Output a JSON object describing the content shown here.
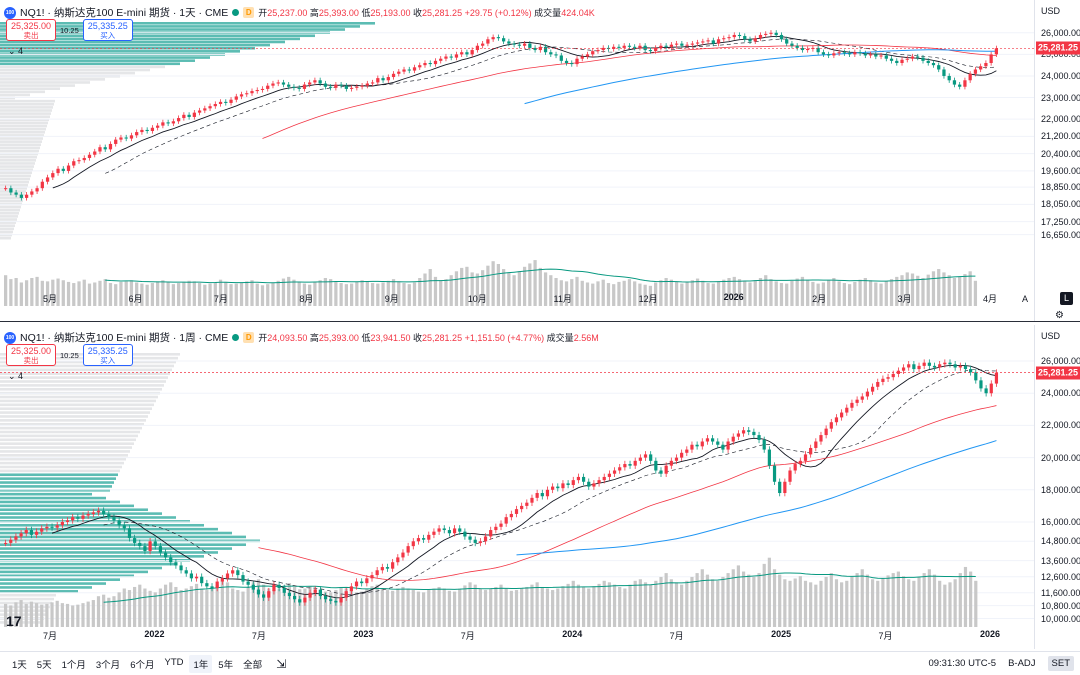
{
  "colors": {
    "up": "#f23645",
    "down": "#089981",
    "accent": "#2962ff",
    "ma_fast": "#131722",
    "ma_mid": "#f23645",
    "ma_slow": "#2196f3",
    "volume": "#c8c8c8",
    "profile_up": "#26a69a",
    "profile_gray": "#dcdde0"
  },
  "top": {
    "badge": "100",
    "title": "NQ1! · 纳斯达克100 E-mini 期货 · 1天 · CME",
    "d_mark": "D",
    "open_label": "开",
    "open": "25,237.00",
    "high_label": "高",
    "high": "25,393.00",
    "low_label": "低",
    "low": "25,193.00",
    "close_label": "收",
    "close": "25,281.25",
    "change": "+29.75 (+0.12%)",
    "vol_label": "成交量",
    "volume": "424.04K",
    "sell_price": "25,325.00",
    "sell_label": "卖出",
    "spread": "10.25",
    "buy_price": "25,335.25",
    "buy_label": "买入",
    "collapse": "4",
    "unit": "USD",
    "last_price": "25,281.25",
    "ticks": [
      "26,000.00",
      "25,000.00",
      "24,000.00",
      "23,000.00",
      "22,000.00",
      "21,200.00",
      "20,400.00",
      "19,600.00",
      "18,850.00",
      "18,050.00",
      "17,250.00",
      "16,650.00"
    ],
    "time_labels": [
      "5月",
      "6月",
      "7月",
      "8月",
      "9月",
      "10月",
      "11月",
      "12月",
      "2026",
      "2月",
      "3月",
      "4月"
    ],
    "chart_data": {
      "type": "candlestick",
      "ylim": [
        16400,
        26500
      ],
      "closes": [
        18800,
        18600,
        18500,
        18350,
        18500,
        18650,
        18800,
        19100,
        19300,
        19500,
        19700,
        19600,
        19850,
        20050,
        20100,
        20200,
        20350,
        20500,
        20700,
        20600,
        20850,
        21050,
        21150,
        21100,
        21250,
        21400,
        21500,
        21450,
        21600,
        21700,
        21850,
        21800,
        21900,
        22050,
        22200,
        22100,
        22300,
        22400,
        22500,
        22600,
        22700,
        22800,
        22750,
        22900,
        23050,
        23150,
        23200,
        23300,
        23350,
        23400,
        23550,
        23650,
        23700,
        23600,
        23500,
        23450,
        23400,
        23600,
        23700,
        23800,
        23650,
        23500,
        23450,
        23600,
        23550,
        23400,
        23450,
        23500,
        23550,
        23650,
        23700,
        23900,
        23800,
        23950,
        24100,
        24200,
        24300,
        24250,
        24400,
        24500,
        24600,
        24550,
        24700,
        24800,
        24900,
        24850,
        25000,
        25100,
        25000,
        25200,
        25400,
        25500,
        25700,
        25800,
        25750,
        25600,
        25500,
        25450,
        25400,
        25500,
        25300,
        25200,
        25350,
        25100,
        25000,
        24950,
        24700,
        24600,
        24550,
        24800,
        24900,
        25000,
        25150,
        25200,
        25300,
        25250,
        25350,
        25300,
        25400,
        25350,
        25300,
        25400,
        25200,
        25150,
        25300,
        25400,
        25350,
        25450,
        25500,
        25400,
        25450,
        25500,
        25550,
        25600,
        25650,
        25500,
        25700,
        25750,
        25800,
        25900,
        25850,
        25700,
        25600,
        25750,
        25900,
        25950,
        26000,
        25900,
        25700,
        25500,
        25400,
        25300,
        25200,
        25250,
        25300,
        25100,
        25000,
        24950,
        25050,
        25100,
        25050,
        25000,
        25100,
        25050,
        24950,
        25000,
        24900,
        24950,
        24800,
        24700,
        24600,
        24750,
        24800,
        24900,
        24850,
        24700,
        24600,
        24500,
        24300,
        24000,
        23800,
        23600,
        23500,
        23800,
        24100,
        24300,
        24450,
        24600,
        25000,
        25281.25
      ],
      "volumes": [
        0.55,
        0.48,
        0.5,
        0.42,
        0.46,
        0.5,
        0.52,
        0.45,
        0.44,
        0.47,
        0.49,
        0.46,
        0.43,
        0.41,
        0.44,
        0.47,
        0.4,
        0.42,
        0.45,
        0.48,
        0.41,
        0.39,
        0.43,
        0.44,
        0.46,
        0.42,
        0.4,
        0.38,
        0.41,
        0.44,
        0.46,
        0.42,
        0.39,
        0.41,
        0.43,
        0.45,
        0.44,
        0.41,
        0.38,
        0.4,
        0.42,
        0.47,
        0.43,
        0.39,
        0.4,
        0.42,
        0.44,
        0.46,
        0.4,
        0.37,
        0.39,
        0.41,
        0.45,
        0.49,
        0.52,
        0.47,
        0.43,
        0.4,
        0.38,
        0.42,
        0.46,
        0.5,
        0.48,
        0.44,
        0.41,
        0.39,
        0.4,
        0.43,
        0.46,
        0.44,
        0.41,
        0.4,
        0.42,
        0.45,
        0.48,
        0.44,
        0.41,
        0.39,
        0.42,
        0.5,
        0.58,
        0.66,
        0.52,
        0.46,
        0.48,
        0.55,
        0.62,
        0.68,
        0.7,
        0.6,
        0.58,
        0.64,
        0.72,
        0.8,
        0.75,
        0.66,
        0.6,
        0.55,
        0.62,
        0.7,
        0.76,
        0.82,
        0.68,
        0.6,
        0.55,
        0.5,
        0.46,
        0.44,
        0.48,
        0.52,
        0.45,
        0.42,
        0.4,
        0.44,
        0.47,
        0.41,
        0.39,
        0.43,
        0.45,
        0.48,
        0.44,
        0.4,
        0.38,
        0.36,
        0.42,
        0.46,
        0.5,
        0.47,
        0.43,
        0.4,
        0.42,
        0.46,
        0.49,
        0.45,
        0.41,
        0.4,
        0.44,
        0.47,
        0.5,
        0.52,
        0.48,
        0.45,
        0.42,
        0.46,
        0.5,
        0.55,
        0.48,
        0.44,
        0.41,
        0.4,
        0.45,
        0.49,
        0.52,
        0.47,
        0.43,
        0.4,
        0.42,
        0.46,
        0.5,
        0.44,
        0.41,
        0.39,
        0.43,
        0.47,
        0.5,
        0.46,
        0.42,
        0.4,
        0.44,
        0.48,
        0.52,
        0.55,
        0.6,
        0.58,
        0.54,
        0.5,
        0.56,
        0.62,
        0.66,
        0.6,
        0.55,
        0.5,
        0.52,
        0.57,
        0.62,
        0.45
      ]
    }
  },
  "bottom": {
    "badge": "100",
    "title": "NQ1! · 纳斯达克100 E-mini 期货 · 1周 · CME",
    "d_mark": "D",
    "open_label": "开",
    "open": "24,093.50",
    "high_label": "高",
    "high": "25,393.00",
    "low_label": "低",
    "low": "23,941.50",
    "close_label": "收",
    "close": "25,281.25",
    "change": "+1,151.50 (+4.77%)",
    "vol_label": "成交量",
    "volume": "2.56M",
    "sell_price": "25,325.00",
    "sell_label": "卖出",
    "spread": "10.25",
    "buy_price": "25,335.25",
    "buy_label": "买入",
    "collapse": "4",
    "unit": "USD",
    "last_price": "25,281.25",
    "ticks": [
      "26,000.00",
      "24,000.00",
      "22,000.00",
      "20,000.00",
      "18,000.00",
      "16,000.00",
      "14,800.00",
      "13,600.00",
      "12,600.00",
      "11,600.00",
      "10,800.00",
      "10,000.00"
    ],
    "time_labels": [
      "7月",
      "2022",
      "7月",
      "2023",
      "7月",
      "2024",
      "7月",
      "2025",
      "7月",
      "2026"
    ],
    "chart_data": {
      "type": "candlestick",
      "ylim": [
        9600,
        26500
      ],
      "closes": [
        14700,
        14900,
        15100,
        15300,
        15500,
        15200,
        15400,
        15600,
        15700,
        15650,
        15800,
        16000,
        16100,
        16300,
        16200,
        16400,
        16500,
        16600,
        16700,
        16500,
        16300,
        16100,
        15800,
        15600,
        15000,
        14700,
        14500,
        14200,
        14800,
        14500,
        14100,
        13800,
        13500,
        13300,
        13000,
        12800,
        12500,
        12600,
        12200,
        12000,
        11900,
        12300,
        12500,
        12800,
        13000,
        12700,
        12300,
        12100,
        11800,
        11500,
        11300,
        11700,
        12100,
        11900,
        11600,
        11400,
        11200,
        11000,
        11300,
        11600,
        11800,
        11400,
        11200,
        11100,
        11000,
        11300,
        11700,
        12000,
        12300,
        12200,
        12500,
        12700,
        13000,
        13200,
        13100,
        13500,
        13800,
        14100,
        14500,
        14800,
        15000,
        14900,
        15200,
        15400,
        15600,
        15500,
        15300,
        15600,
        15400,
        15100,
        14900,
        14700,
        14800,
        15100,
        15500,
        15700,
        15900,
        16300,
        16500,
        16800,
        17000,
        17200,
        17500,
        17800,
        17600,
        18000,
        18200,
        18100,
        18400,
        18300,
        18600,
        18800,
        18500,
        18200,
        18400,
        18600,
        18800,
        19000,
        19200,
        19400,
        19600,
        19500,
        19800,
        20000,
        20200,
        19800,
        19200,
        19000,
        19500,
        19800,
        20000,
        20300,
        20500,
        20800,
        20700,
        21000,
        21200,
        21000,
        20800,
        20500,
        21000,
        21300,
        21500,
        21700,
        21600,
        21400,
        21100,
        20500,
        19500,
        18500,
        17800,
        18500,
        19200,
        19600,
        19800,
        20200,
        20600,
        21000,
        21400,
        21800,
        22200,
        22500,
        22800,
        23100,
        23400,
        23600,
        23800,
        24100,
        24400,
        24700,
        24900,
        25000,
        25200,
        25400,
        25600,
        25800,
        25500,
        25700,
        25900,
        25700,
        25600,
        25800,
        25900,
        25800,
        25600,
        25700,
        25500,
        25300,
        24800,
        24300,
        24000,
        24600,
        25281.25
      ],
      "volumes": [
        0.3,
        0.28,
        0.32,
        0.35,
        0.3,
        0.33,
        0.31,
        0.29,
        0.3,
        0.32,
        0.34,
        0.31,
        0.3,
        0.28,
        0.29,
        0.31,
        0.33,
        0.35,
        0.4,
        0.42,
        0.38,
        0.4,
        0.45,
        0.5,
        0.48,
        0.52,
        0.55,
        0.5,
        0.47,
        0.45,
        0.5,
        0.55,
        0.58,
        0.52,
        0.48,
        0.5,
        0.53,
        0.56,
        0.5,
        0.48,
        0.52,
        0.55,
        0.6,
        0.58,
        0.5,
        0.48,
        0.46,
        0.52,
        0.58,
        0.62,
        0.55,
        0.5,
        0.48,
        0.5,
        0.54,
        0.57,
        0.52,
        0.49,
        0.5,
        0.53,
        0.5,
        0.48,
        0.46,
        0.45,
        0.48,
        0.52,
        0.5,
        0.47,
        0.45,
        0.46,
        0.5,
        0.53,
        0.55,
        0.5,
        0.48,
        0.47,
        0.5,
        0.52,
        0.5,
        0.48,
        0.46,
        0.45,
        0.48,
        0.5,
        0.52,
        0.5,
        0.47,
        0.46,
        0.5,
        0.54,
        0.58,
        0.55,
        0.5,
        0.48,
        0.5,
        0.52,
        0.55,
        0.5,
        0.47,
        0.48,
        0.5,
        0.52,
        0.55,
        0.58,
        0.52,
        0.5,
        0.48,
        0.5,
        0.53,
        0.56,
        0.6,
        0.55,
        0.52,
        0.5,
        0.53,
        0.56,
        0.6,
        0.58,
        0.55,
        0.52,
        0.5,
        0.55,
        0.6,
        0.62,
        0.58,
        0.55,
        0.6,
        0.65,
        0.7,
        0.62,
        0.58,
        0.55,
        0.6,
        0.65,
        0.7,
        0.75,
        0.68,
        0.62,
        0.6,
        0.65,
        0.7,
        0.75,
        0.8,
        0.72,
        0.68,
        0.65,
        0.7,
        0.82,
        0.9,
        0.75,
        0.68,
        0.62,
        0.6,
        0.63,
        0.66,
        0.6,
        0.58,
        0.55,
        0.6,
        0.65,
        0.7,
        0.62,
        0.58,
        0.6,
        0.65,
        0.7,
        0.75,
        0.68,
        0.62,
        0.6,
        0.63,
        0.67,
        0.7,
        0.72,
        0.66,
        0.62,
        0.6,
        0.65,
        0.7,
        0.75,
        0.68,
        0.6,
        0.55,
        0.58,
        0.62,
        0.7,
        0.78,
        0.72,
        0.6
      ]
    }
  },
  "toolbar": {
    "ranges": [
      "1天",
      "5天",
      "1个月",
      "3个月",
      "6个月",
      "YTD",
      "1年",
      "5年",
      "全部"
    ],
    "active_range": "1年",
    "compare_icon": "date-range-icon",
    "time": "09:31:30 UTC-5",
    "adj": "B-ADJ",
    "session": "SET"
  }
}
